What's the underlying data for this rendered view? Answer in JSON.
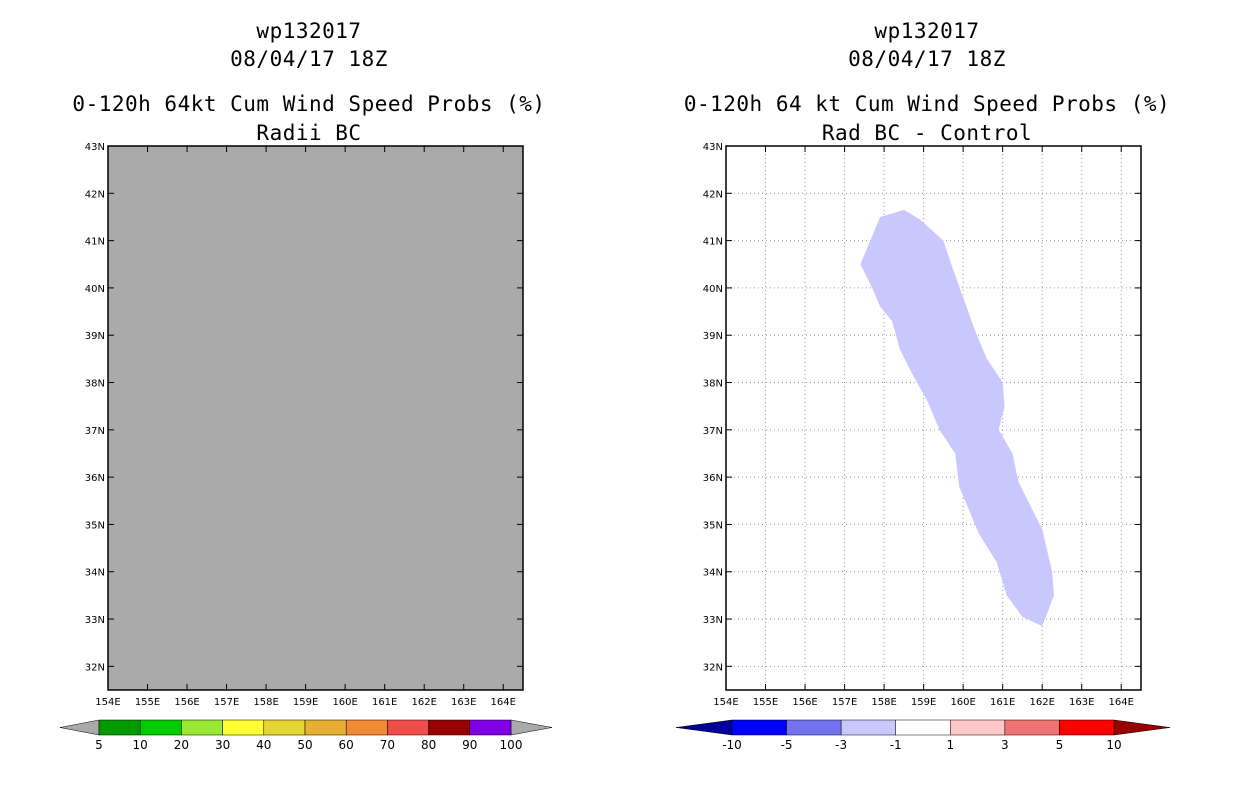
{
  "panels": [
    {
      "storm_id": "wp132017",
      "datetime": "08/04/17 18Z",
      "product": "0-120h 64kt Cum Wind Speed Probs (%)",
      "subtitle": "Radii BC"
    },
    {
      "storm_id": "wp132017",
      "datetime": "08/04/17 18Z",
      "product": "0-120h 64 kt Cum Wind Speed Probs (%)",
      "subtitle": "Rad BC - Control"
    }
  ],
  "chart_data": [
    {
      "type": "heatmap",
      "title": "0-120h 64kt Cum Wind Speed Probs (%)",
      "subtitle": "Radii BC",
      "lon_range": [
        154,
        164.5
      ],
      "lat_range": [
        31.5,
        43
      ],
      "x_ticks": [
        "154E",
        "155E",
        "156E",
        "157E",
        "158E",
        "159E",
        "160E",
        "161E",
        "162E",
        "163E",
        "164E"
      ],
      "y_ticks": [
        "32N",
        "33N",
        "34N",
        "35N",
        "36N",
        "37N",
        "38N",
        "39N",
        "40N",
        "41N",
        "42N",
        "43N"
      ],
      "background_color": "#aaaaaa",
      "grid": false,
      "colorbar": {
        "labels": [
          "5",
          "10",
          "20",
          "30",
          "40",
          "50",
          "60",
          "70",
          "80",
          "90",
          "100"
        ],
        "colors": [
          "#009900",
          "#00cc00",
          "#99e633",
          "#ffff33",
          "#e6d633",
          "#e6b033",
          "#f08c33",
          "#f04c4c",
          "#990000",
          "#8000e6"
        ],
        "end_colors": [
          "#aaaaaa",
          "#aaaaaa"
        ]
      }
    },
    {
      "type": "heatmap",
      "title": "0-120h 64 kt Cum Wind Speed Probs (%)",
      "subtitle": "Rad BC - Control",
      "lon_range": [
        154,
        164.5
      ],
      "lat_range": [
        31.5,
        43
      ],
      "x_ticks": [
        "154E",
        "155E",
        "156E",
        "157E",
        "158E",
        "159E",
        "160E",
        "161E",
        "162E",
        "163E",
        "164E"
      ],
      "y_ticks": [
        "32N",
        "33N",
        "34N",
        "35N",
        "36N",
        "37N",
        "38N",
        "39N",
        "40N",
        "41N",
        "42N",
        "43N"
      ],
      "background_color": "#ffffff",
      "grid": true,
      "region": {
        "bin": "-3 to -1",
        "color": "#c8c8ff",
        "outline_lonlat": [
          [
            157.4,
            40.5
          ],
          [
            157.9,
            41.5
          ],
          [
            158.5,
            41.65
          ],
          [
            158.9,
            41.45
          ],
          [
            159.5,
            41.0
          ],
          [
            159.7,
            40.5
          ],
          [
            160.0,
            39.8
          ],
          [
            160.3,
            39.1
          ],
          [
            160.6,
            38.5
          ],
          [
            161.0,
            38.0
          ],
          [
            161.05,
            37.5
          ],
          [
            160.9,
            37.0
          ],
          [
            161.25,
            36.5
          ],
          [
            161.4,
            35.9
          ],
          [
            161.7,
            35.4
          ],
          [
            162.0,
            34.9
          ],
          [
            162.25,
            34.0
          ],
          [
            162.3,
            33.5
          ],
          [
            162.0,
            32.85
          ],
          [
            161.5,
            33.05
          ],
          [
            161.1,
            33.5
          ],
          [
            160.85,
            34.2
          ],
          [
            160.4,
            34.8
          ],
          [
            160.1,
            35.4
          ],
          [
            159.9,
            35.8
          ],
          [
            159.8,
            36.5
          ],
          [
            159.4,
            37.0
          ],
          [
            159.1,
            37.6
          ],
          [
            158.7,
            38.2
          ],
          [
            158.4,
            38.7
          ],
          [
            158.2,
            39.3
          ],
          [
            157.9,
            39.6
          ],
          [
            157.7,
            40.0
          ]
        ]
      },
      "colorbar": {
        "labels": [
          "-10",
          "-5",
          "-3",
          "-1",
          "1",
          "3",
          "5",
          "10"
        ],
        "colors": [
          "#0000ff",
          "#7373f0",
          "#c8c8ff",
          "#ffffff",
          "#ffc8c8",
          "#f07373",
          "#ff0000"
        ],
        "end_colors": [
          "#000099",
          "#990000"
        ]
      }
    }
  ]
}
